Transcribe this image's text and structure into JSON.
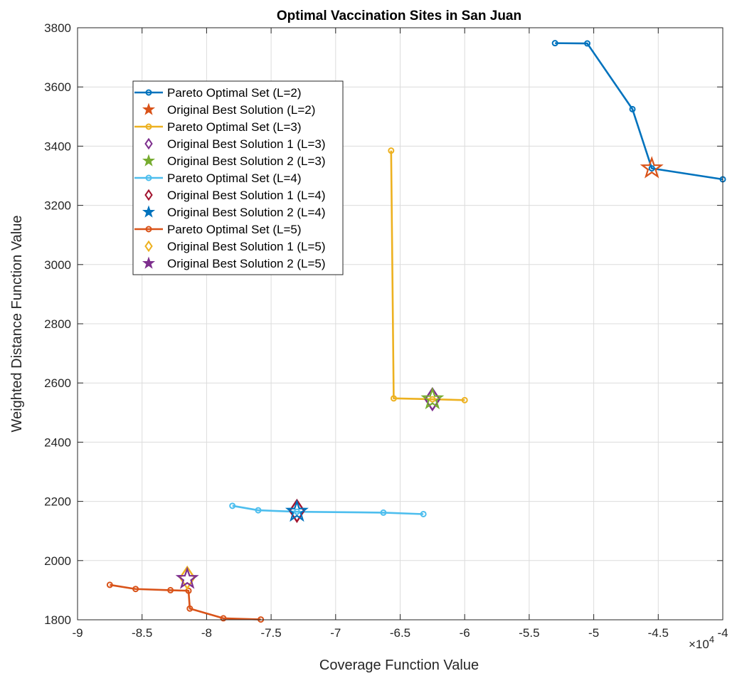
{
  "chart_data": {
    "type": "line",
    "title": "Optimal Vaccination Sites in San Juan",
    "xlabel": "Coverage Function Value",
    "ylabel": "Weighted Distance Function Value",
    "x_exponent_label": "×10",
    "x_exponent_power": "4",
    "xlim": [
      -9,
      -4
    ],
    "ylim": [
      1800,
      3800
    ],
    "x_scale_factor": 10000,
    "x_ticks": [
      -9,
      -8.5,
      -8,
      -7.5,
      -7,
      -6.5,
      -6,
      -5.5,
      -5,
      -4.5,
      -4
    ],
    "x_tick_labels": [
      "-9",
      "-8.5",
      "-8",
      "-7.5",
      "-7",
      "-6.5",
      "-6",
      "-5.5",
      "-5",
      "-4.5",
      "-4"
    ],
    "y_ticks": [
      1800,
      2000,
      2200,
      2400,
      2600,
      2800,
      3000,
      3200,
      3400,
      3600,
      3800
    ],
    "y_tick_labels": [
      "1800",
      "2000",
      "2200",
      "2400",
      "2600",
      "2800",
      "3000",
      "3200",
      "3400",
      "3600",
      "3800"
    ],
    "grid": true,
    "legend_location": "upper-left",
    "series": [
      {
        "name": "Pareto Optimal Set (L=2)",
        "kind": "line",
        "marker": "circle",
        "color": "#0072BD",
        "x": [
          -5.3,
          -5.05,
          -4.7,
          -4.55,
          -4.0
        ],
        "y": [
          3748,
          3747,
          3525,
          3325,
          3288
        ]
      },
      {
        "name": "Original Best Solution (L=2)",
        "kind": "marker",
        "marker": "star",
        "color": "#D95319",
        "x": [
          -4.55
        ],
        "y": [
          3325
        ]
      },
      {
        "name": "Pareto Optimal Set (L=3)",
        "kind": "line",
        "marker": "circle",
        "color": "#EDB120",
        "x": [
          -6.57,
          -6.55,
          -6.25,
          -6.0
        ],
        "y": [
          3385,
          2548,
          2545,
          2542
        ]
      },
      {
        "name": "Original Best Solution 1 (L=3)",
        "kind": "marker",
        "marker": "diamond",
        "color": "#7E2F8E",
        "x": [
          -6.25
        ],
        "y": [
          2545
        ]
      },
      {
        "name": "Original Best Solution 2 (L=3)",
        "kind": "marker",
        "marker": "star",
        "color": "#77AC30",
        "x": [
          -6.25
        ],
        "y": [
          2545
        ]
      },
      {
        "name": "Pareto Optimal Set (L=4)",
        "kind": "line",
        "marker": "circle",
        "color": "#4DBEEE",
        "x": [
          -7.8,
          -7.6,
          -7.3,
          -6.63,
          -6.32
        ],
        "y": [
          2185,
          2170,
          2165,
          2162,
          2157
        ]
      },
      {
        "name": "Original Best Solution 1 (L=4)",
        "kind": "marker",
        "marker": "diamond",
        "color": "#A2142F",
        "x": [
          -7.3
        ],
        "y": [
          2168
        ]
      },
      {
        "name": "Original Best Solution 2 (L=4)",
        "kind": "marker",
        "marker": "star",
        "color": "#0072BD",
        "x": [
          -7.3
        ],
        "y": [
          2165
        ]
      },
      {
        "name": "Pareto Optimal Set (L=5)",
        "kind": "line",
        "marker": "circle",
        "color": "#D95319",
        "x": [
          -8.75,
          -8.55,
          -8.28,
          -8.14,
          -8.13,
          -7.87,
          -7.58
        ],
        "y": [
          1918,
          1904,
          1900,
          1898,
          1838,
          1805,
          1801
        ]
      },
      {
        "name": "Original Best Solution 1 (L=5)",
        "kind": "marker",
        "marker": "diamond",
        "color": "#EDB120",
        "x": [
          -8.15
        ],
        "y": [
          1942
        ]
      },
      {
        "name": "Original Best Solution 2 (L=5)",
        "kind": "marker",
        "marker": "star",
        "color": "#7E2F8E",
        "x": [
          -8.15
        ],
        "y": [
          1938
        ]
      }
    ]
  }
}
